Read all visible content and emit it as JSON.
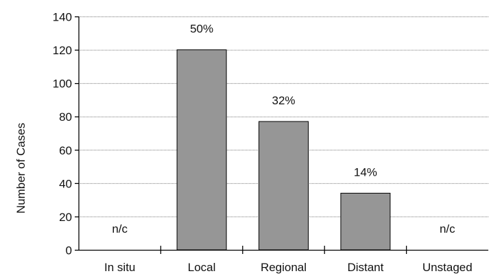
{
  "chart_data": {
    "type": "bar",
    "title": "",
    "xlabel": "",
    "ylabel": "Number of Cases",
    "ylim": [
      0,
      140
    ],
    "yticks": [
      0,
      20,
      40,
      60,
      80,
      100,
      120,
      140
    ],
    "grid": true,
    "legend": "none",
    "categories": [
      "In situ",
      "Local",
      "Regional",
      "Distant",
      "Unstaged"
    ],
    "values": [
      null,
      120,
      77,
      34,
      null
    ],
    "data_labels": [
      "n/c",
      "50%",
      "32%",
      "14%",
      "n/c"
    ],
    "colors": {
      "bar": "#969696",
      "bar_stroke": "#000000",
      "grid": "#777777",
      "axis": "#000000"
    }
  }
}
